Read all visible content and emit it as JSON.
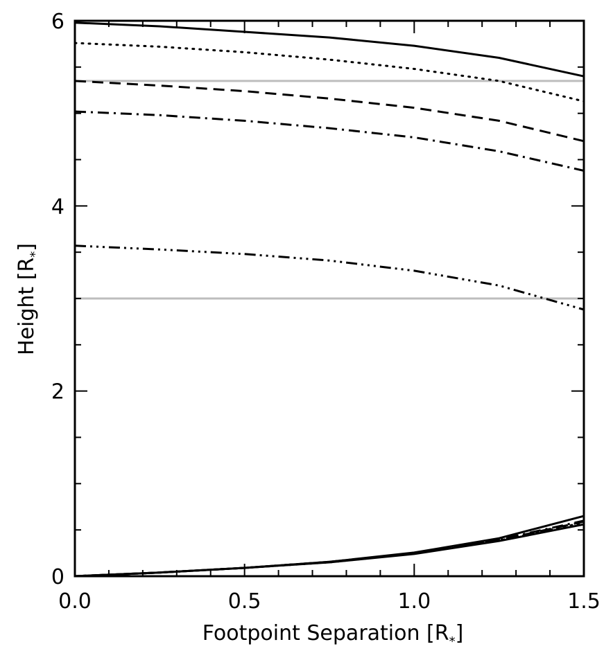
{
  "chart_data": {
    "type": "line",
    "xlabel": "Footpoint Separation [R",
    "xlabel_sub": "*",
    "xlabel_close": "]",
    "ylabel": "Height [R",
    "ylabel_sub": "*",
    "ylabel_close": "]",
    "xlim": [
      0.0,
      1.5
    ],
    "ylim": [
      0,
      6
    ],
    "xticks": [
      0.0,
      0.5,
      1.0,
      1.5
    ],
    "xtick_labels": [
      "0.0",
      "0.5",
      "1.0",
      "1.5"
    ],
    "yticks": [
      0,
      2,
      4,
      6
    ],
    "ytick_labels": [
      "0",
      "2",
      "4",
      "6"
    ],
    "grid": false,
    "legend": false,
    "reference_lines": [
      {
        "y": 5.35,
        "color": "#bdbdbd"
      },
      {
        "y": 3.0,
        "color": "#bdbdbd"
      }
    ],
    "series": [
      {
        "style": "solid",
        "x": [
          0,
          0.25,
          0.5,
          0.75,
          1.0,
          1.25,
          1.5
        ],
        "y": [
          5.98,
          5.94,
          5.88,
          5.82,
          5.73,
          5.6,
          5.4
        ]
      },
      {
        "style": "dotted",
        "x": [
          0,
          0.25,
          0.5,
          0.75,
          1.0,
          1.25,
          1.5
        ],
        "y": [
          5.76,
          5.72,
          5.66,
          5.58,
          5.48,
          5.35,
          5.13
        ]
      },
      {
        "style": "dashed",
        "x": [
          0,
          0.25,
          0.5,
          0.75,
          1.0,
          1.25,
          1.5
        ],
        "y": [
          5.35,
          5.3,
          5.24,
          5.16,
          5.06,
          4.92,
          4.7
        ]
      },
      {
        "style": "dashdot",
        "x": [
          0,
          0.25,
          0.5,
          0.75,
          1.0,
          1.25,
          1.5
        ],
        "y": [
          5.02,
          4.98,
          4.92,
          4.84,
          4.74,
          4.59,
          4.38
        ]
      },
      {
        "style": "dashdotdotdot",
        "x": [
          0,
          0.25,
          0.5,
          0.75,
          1.0,
          1.25,
          1.5
        ],
        "y": [
          3.57,
          3.53,
          3.48,
          3.41,
          3.3,
          3.14,
          2.88
        ]
      },
      {
        "style": "solid",
        "x": [
          0,
          0.25,
          0.5,
          0.75,
          1.0,
          1.25,
          1.5
        ],
        "y": [
          0.0,
          0.04,
          0.09,
          0.15,
          0.24,
          0.38,
          0.56
        ]
      },
      {
        "style": "dotted",
        "x": [
          0,
          0.25,
          0.5,
          0.75,
          1.0,
          1.25,
          1.5
        ],
        "y": [
          0.0,
          0.04,
          0.09,
          0.15,
          0.245,
          0.385,
          0.58
        ]
      },
      {
        "style": "dashed",
        "x": [
          0,
          0.25,
          0.5,
          0.75,
          1.0,
          1.25,
          1.5
        ],
        "y": [
          0.0,
          0.04,
          0.09,
          0.155,
          0.245,
          0.39,
          0.59
        ]
      },
      {
        "style": "dashdot",
        "x": [
          0,
          0.25,
          0.5,
          0.75,
          1.0,
          1.25,
          1.5
        ],
        "y": [
          0.0,
          0.04,
          0.09,
          0.155,
          0.25,
          0.395,
          0.6
        ]
      },
      {
        "style": "solid",
        "x": [
          0,
          0.25,
          0.5,
          0.75,
          1.0,
          1.25,
          1.5
        ],
        "y": [
          0.0,
          0.04,
          0.09,
          0.155,
          0.255,
          0.41,
          0.65
        ]
      }
    ]
  }
}
